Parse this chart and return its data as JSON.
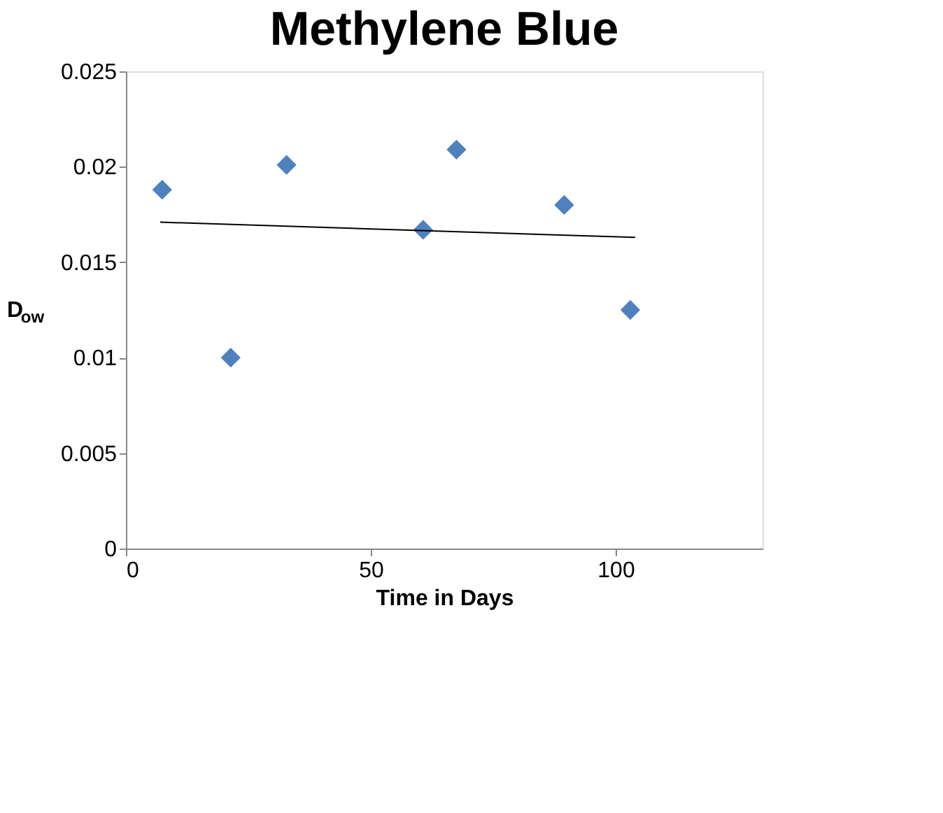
{
  "chart_data": {
    "type": "scatter",
    "title": "Methylene Blue",
    "xlabel": "Time in Days",
    "ylabel": "D$_{ow}$",
    "xlim": [
      0,
      130
    ],
    "xticks": [
      0,
      50,
      100
    ],
    "ylim": [
      0,
      0.025
    ],
    "yticks": [
      0,
      0.005,
      0.01,
      0.015,
      0.02,
      0.025
    ],
    "grid": false,
    "series": [
      {
        "marker": "diamond",
        "color": "#4f81bd",
        "x": [
          7.4,
          21.4,
          32.8,
          60.7,
          67.5,
          89.5,
          103
        ],
        "values": [
          0.0188,
          0.01,
          0.0201,
          0.0167,
          0.0209,
          0.018,
          0.0125
        ]
      },
      {
        "type": "line",
        "color": "#000000",
        "x": [
          7,
          104
        ],
        "values": [
          0.0171,
          0.0163
        ]
      }
    ]
  }
}
